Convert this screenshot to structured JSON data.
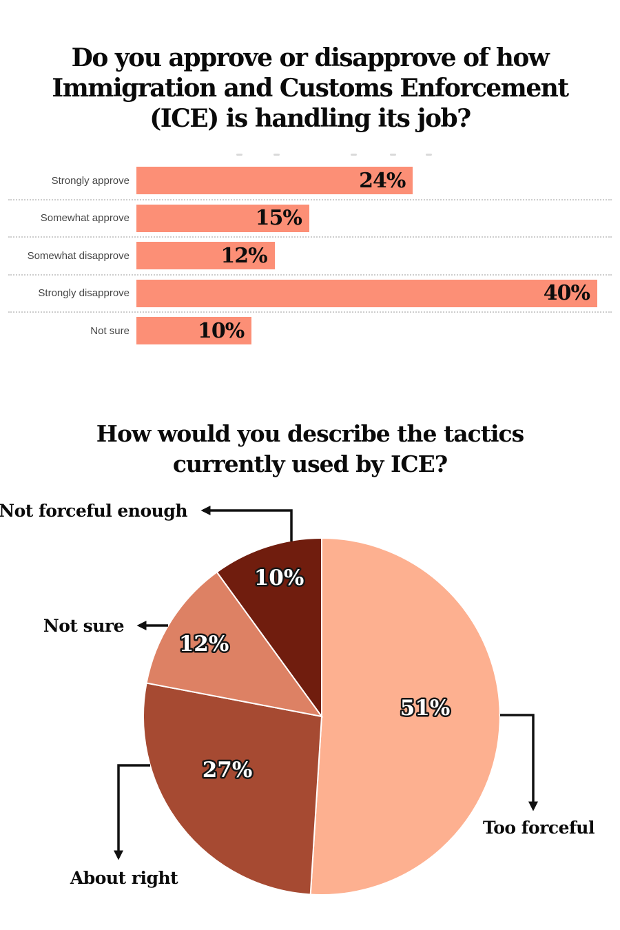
{
  "chart_data": [
    {
      "type": "bar",
      "orientation": "horizontal",
      "title": "Do you approve or disapprove of how\nImmigration and Customs Enforcement\n(ICE) is handling its job?",
      "categories": [
        "Strongly approve",
        "Somewhat approve",
        "Somewhat disapprove",
        "Strongly disapprove",
        "Not sure"
      ],
      "values": [
        24,
        15,
        12,
        40,
        10
      ],
      "value_labels": [
        "24%",
        "15%",
        "12%",
        "40%",
        "10%"
      ],
      "xlim": [
        0,
        42
      ],
      "bar_color": "#FC8F76",
      "grid": "dotted horizontal separators between rows",
      "legend": "none"
    },
    {
      "type": "pie",
      "title": "How would you describe the tactics\ncurrently used by ICE?",
      "start_angle": "12 o'clock, clockwise",
      "slices": [
        {
          "label": "Too forceful",
          "value": 51,
          "pct_label": "51%",
          "color": "#FDB090"
        },
        {
          "label": "About right",
          "value": 27,
          "pct_label": "27%",
          "color": "#A64A32"
        },
        {
          "label": "Not sure",
          "value": 12,
          "pct_label": "12%",
          "color": "#DD8164"
        },
        {
          "label": "Not forceful enough",
          "value": 10,
          "pct_label": "10%",
          "color": "#701D0E"
        }
      ],
      "label_style": "white percent labels with black outline inside slices; black callout labels with elbow arrows outside",
      "legend": "none"
    }
  ]
}
